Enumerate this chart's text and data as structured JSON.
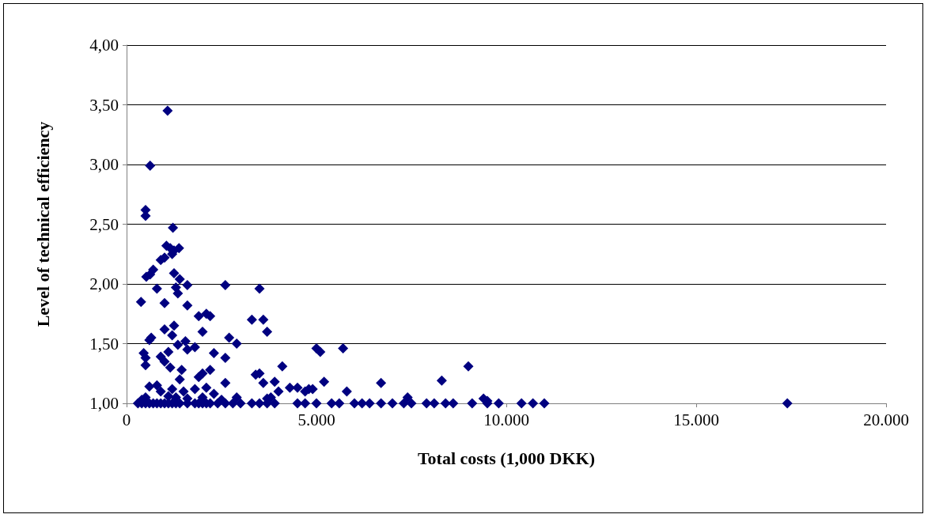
{
  "chart_data": {
    "type": "scatter",
    "xlabel": "Total costs (1,000 DKK)",
    "ylabel": "Level of technical efficiency",
    "xlim": [
      0,
      20000
    ],
    "xticks": [
      0,
      {
        "value": 5000,
        "label": "5.000"
      },
      {
        "value": 10000,
        "label": "10.000"
      },
      {
        "value": 15000,
        "label": "15.000"
      },
      {
        "value": 20000,
        "label": "20.000"
      }
    ],
    "ylim": [
      1,
      4
    ],
    "yticks": [
      {
        "value": 1,
        "label": "1,00"
      },
      {
        "value": 1.5,
        "label": "1,50"
      },
      {
        "value": 2,
        "label": "2,00"
      },
      {
        "value": 2.5,
        "label": "2,50"
      },
      {
        "value": 3,
        "label": "3,00"
      },
      {
        "value": 3.5,
        "label": "3,50"
      },
      {
        "value": 4,
        "label": "4,00"
      }
    ],
    "grid": "y",
    "marker": "diamond",
    "series": [
      {
        "color": "#000080",
        "x": [
          1080,
          620,
          500,
          500,
          1220,
          1050,
          1150,
          1380,
          1250,
          1000,
          1200,
          900,
          700,
          620,
          520,
          1250,
          1400,
          1600,
          1300,
          800,
          2600,
          3500,
          1350,
          380,
          1000,
          1600,
          1900,
          2100,
          2200,
          3300,
          3600,
          3700,
          1000,
          1250,
          2000,
          650,
          600,
          1200,
          2700,
          2900,
          1550,
          1350,
          1800,
          1600,
          1100,
          2300,
          450,
          500,
          900,
          1000,
          2600,
          5000,
          5100,
          5700,
          4100,
          9000,
          500,
          1150,
          1450,
          2200,
          3400,
          3500,
          1400,
          1900,
          2000,
          3600,
          3900,
          2600,
          6700,
          8300,
          5200,
          4800,
          4900,
          4700,
          4300,
          4000,
          5800,
          4500,
          600,
          800,
          1200,
          900,
          1500,
          1800,
          2100,
          2300,
          2900,
          3700,
          9400,
          7400,
          9500,
          3800,
          400,
          500,
          1100,
          1300,
          1600,
          2000,
          2500,
          300,
          400,
          500,
          600,
          700,
          800,
          900,
          1000,
          1100,
          1200,
          1300,
          1400,
          1600,
          1800,
          1900,
          2000,
          2100,
          2200,
          2400,
          2600,
          2800,
          3000,
          3300,
          3500,
          3700,
          3900,
          4500,
          4700,
          5000,
          5400,
          5600,
          6000,
          6200,
          6400,
          6700,
          7000,
          7300,
          7500,
          7900,
          8100,
          8400,
          8600,
          9100,
          9500,
          9800,
          10400,
          10700,
          11000,
          17400
        ],
        "values": [
          3.45,
          2.99,
          2.62,
          2.57,
          2.47,
          2.32,
          2.3,
          2.3,
          2.28,
          2.22,
          2.25,
          2.2,
          2.12,
          2.08,
          2.06,
          2.09,
          2.04,
          1.99,
          1.97,
          1.96,
          1.99,
          1.96,
          1.92,
          1.85,
          1.84,
          1.82,
          1.73,
          1.75,
          1.73,
          1.7,
          1.7,
          1.6,
          1.62,
          1.65,
          1.6,
          1.55,
          1.53,
          1.57,
          1.55,
          1.5,
          1.52,
          1.49,
          1.47,
          1.45,
          1.43,
          1.42,
          1.42,
          1.38,
          1.39,
          1.35,
          1.38,
          1.46,
          1.43,
          1.46,
          1.31,
          1.31,
          1.32,
          1.3,
          1.28,
          1.28,
          1.24,
          1.25,
          1.2,
          1.22,
          1.25,
          1.17,
          1.18,
          1.17,
          1.17,
          1.19,
          1.18,
          1.12,
          1.12,
          1.1,
          1.13,
          1.1,
          1.1,
          1.13,
          1.14,
          1.15,
          1.12,
          1.1,
          1.1,
          1.12,
          1.13,
          1.08,
          1.05,
          1.04,
          1.04,
          1.05,
          1.02,
          1.05,
          1.03,
          1.05,
          1.06,
          1.05,
          1.04,
          1.05,
          1.03,
          1,
          1,
          1,
          1,
          1,
          1,
          1,
          1,
          1,
          1,
          1,
          1,
          1,
          1,
          1,
          1,
          1,
          1,
          1,
          1,
          1,
          1,
          1,
          1,
          1,
          1,
          1,
          1,
          1,
          1,
          1,
          1,
          1,
          1,
          1,
          1,
          1,
          1,
          1,
          1,
          1,
          1,
          1,
          1,
          1,
          1,
          1,
          1,
          1
        ]
      }
    ]
  }
}
